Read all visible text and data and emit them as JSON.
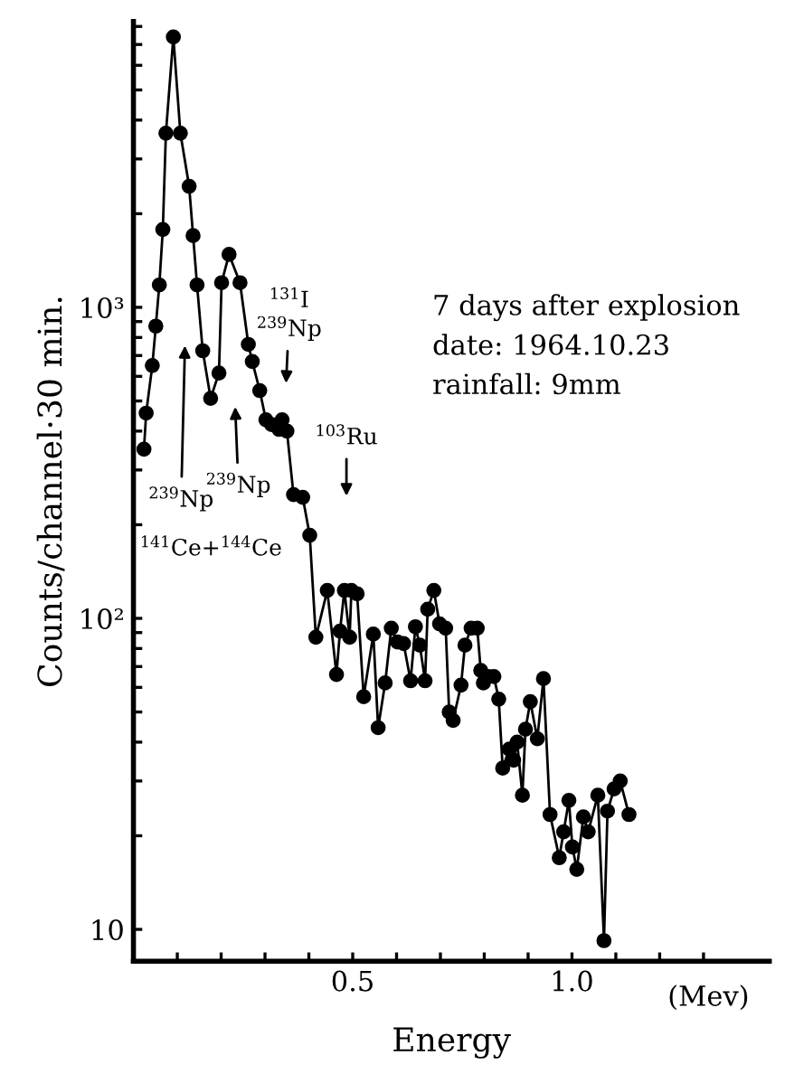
{
  "chart_data": {
    "type": "line",
    "xlabel": "Energy",
    "ylabel": "Counts/channel·30 min.",
    "log": "y",
    "marker": "circle",
    "line_style": "solid",
    "grid": false,
    "xlim": [
      0,
      1.45
    ],
    "ylim": [
      7.9,
      8300
    ],
    "xticks": [
      {
        "value": 0.1,
        "label": null
      },
      {
        "value": 0.2,
        "label": null
      },
      {
        "value": 0.3,
        "label": null
      },
      {
        "value": 0.4,
        "label": null
      },
      0.5,
      {
        "value": 0.6,
        "label": null
      },
      {
        "value": 0.7,
        "label": null
      },
      {
        "value": 0.8,
        "label": null
      },
      {
        "value": 0.9,
        "label": null
      },
      {
        "value": 1.0,
        "label": "1.0"
      },
      {
        "value": 1.1,
        "label": null
      },
      {
        "value": 1.2,
        "label": null
      },
      {
        "value": 1.3,
        "label": null
      }
    ],
    "yticks": [
      10,
      {
        "value": 20,
        "label": null
      },
      {
        "value": 30,
        "label": null
      },
      {
        "value": 40,
        "label": null
      },
      {
        "value": 50,
        "label": null
      },
      {
        "value": 60,
        "label": null
      },
      {
        "value": 70,
        "label": null
      },
      {
        "value": 80,
        "label": null
      },
      {
        "value": 90,
        "label": null
      },
      {
        "value": 100,
        "label": "10²"
      },
      {
        "value": 200,
        "label": null
      },
      {
        "value": 300,
        "label": null
      },
      {
        "value": 400,
        "label": null
      },
      {
        "value": 500,
        "label": null
      },
      {
        "value": 600,
        "label": null
      },
      {
        "value": 700,
        "label": null
      },
      {
        "value": 800,
        "label": null
      },
      {
        "value": 900,
        "label": null
      },
      {
        "value": 1000,
        "label": "10³"
      },
      {
        "value": 2000,
        "label": null
      },
      {
        "value": 3000,
        "label": null
      },
      {
        "value": 4000,
        "label": null
      },
      {
        "value": 5000,
        "label": null
      },
      {
        "value": 6000,
        "label": null
      },
      {
        "value": 7000,
        "label": null
      },
      {
        "value": 8000,
        "label": null
      }
    ],
    "series": [
      {
        "color": "#000000",
        "x": [
          0.024,
          0.029,
          0.043,
          0.051,
          0.059,
          0.067,
          0.074,
          0.091,
          0.107,
          0.127,
          0.136,
          0.145,
          0.158,
          0.176,
          0.195,
          0.201,
          0.218,
          0.243,
          0.262,
          0.271,
          0.288,
          0.302,
          0.315,
          0.332,
          0.339,
          0.35,
          0.365,
          0.386,
          0.402,
          0.416,
          0.442,
          0.463,
          0.471,
          0.481,
          0.493,
          0.497,
          0.51,
          0.525,
          0.547,
          0.558,
          0.574,
          0.588,
          0.602,
          0.616,
          0.632,
          0.643,
          0.653,
          0.665,
          0.671,
          0.685,
          0.698,
          0.712,
          0.72,
          0.729,
          0.747,
          0.756,
          0.77,
          0.784,
          0.792,
          0.798,
          0.809,
          0.822,
          0.833,
          0.842,
          0.857,
          0.867,
          0.875,
          0.887,
          0.894,
          0.905,
          0.921,
          0.935,
          0.95,
          0.971,
          0.981,
          0.993,
          1.001,
          1.011,
          1.026,
          1.037,
          1.059,
          1.073,
          1.081,
          1.096,
          1.11,
          1.13
        ],
        "values": [
          350,
          457,
          650,
          870,
          1180,
          1780,
          3630,
          7400,
          3630,
          2450,
          1700,
          1180,
          725,
          510,
          615,
          1200,
          1480,
          1200,
          760,
          670,
          540,
          435,
          420,
          405,
          435,
          400,
          250,
          245,
          185,
          87,
          123,
          66,
          91,
          123,
          87,
          123,
          120,
          56,
          89,
          44.5,
          62,
          93,
          84,
          83,
          63,
          94,
          82,
          63,
          107,
          123,
          96,
          93,
          50,
          47,
          61,
          82,
          93,
          93,
          68,
          62,
          65,
          65,
          55,
          33,
          38,
          35,
          40,
          27,
          44,
          54,
          41,
          64,
          23.4,
          17,
          20.6,
          26,
          18.4,
          15.6,
          23,
          20.6,
          27,
          9.2,
          24,
          28.3,
          30,
          23.4
        ]
      }
    ],
    "annotations": [
      "7 days after explosion\ndate: 1964.10.23\nrainfall: 9mm",
      "(Mev)",
      "$^{239}$Np",
      "$^{141}$Ce+$^{144}$Ce",
      "$^{239}$Np",
      "$^{131}$I\n$^{239}$Np",
      "$^{103}$Ru"
    ]
  }
}
